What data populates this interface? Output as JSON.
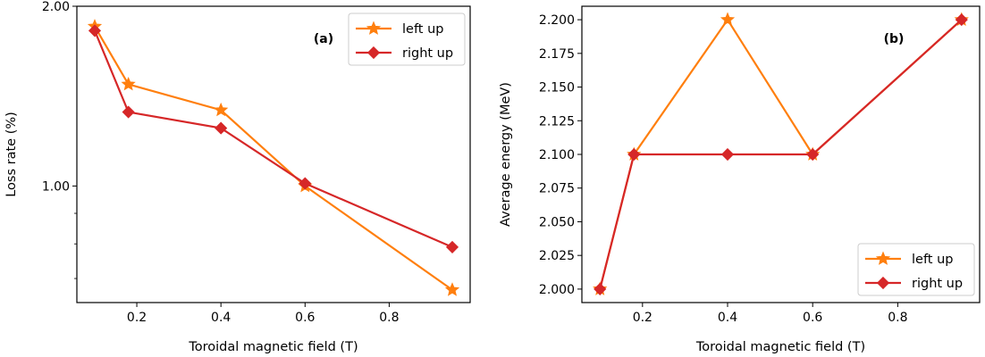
{
  "colors": {
    "left_up": "#ff7f0e",
    "right_up": "#d62728"
  },
  "chart_data": [
    {
      "type": "line",
      "panel_label": "(a)",
      "xlabel": "Toroidal magnetic field (T)",
      "ylabel": "Loss rate (%)",
      "yscale": "log",
      "x": [
        0.1,
        0.18,
        0.4,
        0.6,
        0.95
      ],
      "xlim": [
        0.0575,
        0.9925
      ],
      "ylim": [
        0.638,
        2.0
      ],
      "xticks": [
        0.2,
        0.4,
        0.6,
        0.8
      ],
      "xtick_labels": [
        "0.2",
        "0.4",
        "0.6",
        "0.8"
      ],
      "yticks": [
        1.0,
        2.0
      ],
      "ytick_labels": [
        "1.00",
        "2.00"
      ],
      "yminor_ticks": [
        0.7,
        0.8,
        0.9
      ],
      "legend_position": "upper-right",
      "series": [
        {
          "name": "left up",
          "marker": "star",
          "values": [
            1.85,
            1.48,
            1.34,
            1.0,
            0.67
          ]
        },
        {
          "name": "right up",
          "marker": "diamond",
          "values": [
            1.82,
            1.33,
            1.25,
            1.01,
            0.79
          ]
        }
      ]
    },
    {
      "type": "line",
      "panel_label": "(b)",
      "xlabel": "Toroidal magnetic field (T)",
      "ylabel": "Average energy (MeV)",
      "yscale": "linear",
      "x": [
        0.1,
        0.18,
        0.4,
        0.6,
        0.95
      ],
      "xlim": [
        0.0575,
        0.9925
      ],
      "ylim": [
        1.99,
        2.21
      ],
      "xticks": [
        0.2,
        0.4,
        0.6,
        0.8
      ],
      "xtick_labels": [
        "0.2",
        "0.4",
        "0.6",
        "0.8"
      ],
      "yticks": [
        2.0,
        2.025,
        2.05,
        2.075,
        2.1,
        2.125,
        2.15,
        2.175,
        2.2
      ],
      "ytick_labels": [
        "2.000",
        "2.025",
        "2.050",
        "2.075",
        "2.100",
        "2.125",
        "2.150",
        "2.175",
        "2.200"
      ],
      "yminor_ticks": [],
      "legend_position": "lower-right",
      "series": [
        {
          "name": "left up",
          "marker": "star",
          "values": [
            2.0,
            2.1,
            2.2,
            2.1,
            2.2
          ]
        },
        {
          "name": "right up",
          "marker": "diamond",
          "values": [
            2.0,
            2.1,
            2.1,
            2.1,
            2.2
          ]
        }
      ]
    }
  ]
}
